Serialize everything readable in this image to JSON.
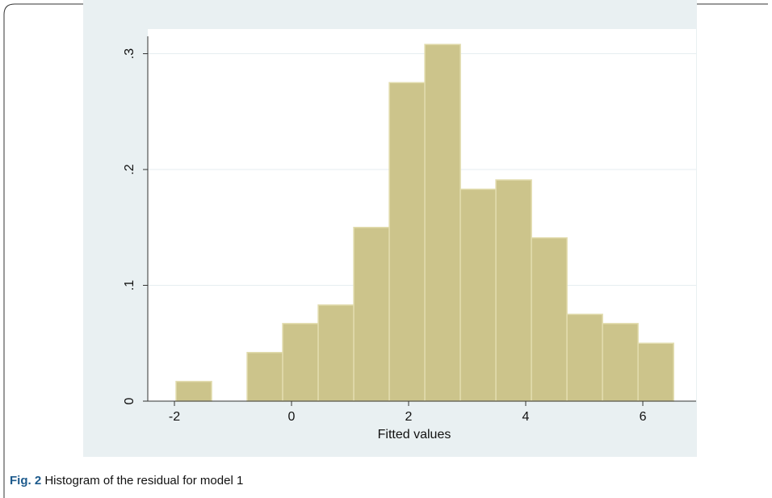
{
  "chart_data": {
    "type": "histogram",
    "x_label": "Fitted values",
    "bins": [
      -1.972,
      -1.365,
      -0.758,
      -0.151,
      0.456,
      1.063,
      1.67,
      2.277,
      2.884,
      3.491,
      4.098,
      4.705,
      5.312,
      5.919,
      6.526
    ],
    "values": [
      0.017,
      0,
      0.042,
      0.067,
      0.083,
      0.15,
      0.275,
      0.308,
      0.183,
      0.191,
      0.141,
      0.075,
      0.067,
      0.05
    ],
    "color": "#ccc48b",
    "xlim": [
      -2.455,
      6.91
    ],
    "xticks": [
      -2,
      0,
      2,
      4,
      6
    ],
    "ylim": [
      0,
      0.315
    ],
    "yticks": [
      0,
      {
        "value": 0.1,
        "label": ".1"
      },
      {
        "value": 0.2,
        "label": ".2"
      },
      {
        "value": 0.3,
        "label": ".3"
      }
    ],
    "grid": true
  },
  "caption": {
    "label": "Fig. 2",
    "text": "Histogram of the residual for model 1"
  }
}
